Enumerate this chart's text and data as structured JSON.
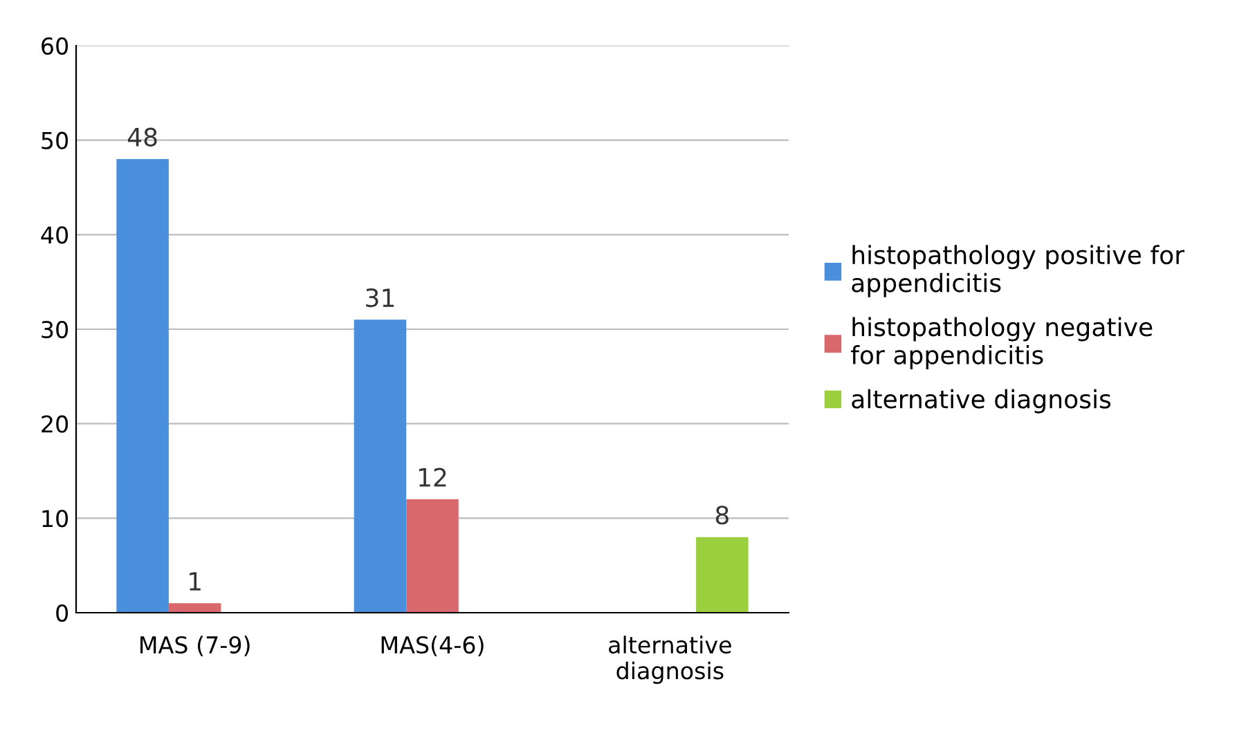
{
  "chart_data": {
    "type": "bar",
    "categories": [
      "MAS (7-9)",
      "MAS(4-6)",
      "alternative\ndiagnosis"
    ],
    "series": [
      {
        "name": "histopathology positive for\nappendicitis",
        "color": "#4a8fdb",
        "values": [
          48,
          31,
          null
        ]
      },
      {
        "name": "histopathology negative\nfor appendicitis",
        "color": "#d8686c",
        "values": [
          1,
          12,
          null
        ]
      },
      {
        "name": "alternative diagnosis",
        "color": "#9ccf3e",
        "values": [
          null,
          null,
          8
        ]
      }
    ],
    "ylim": [
      0,
      60
    ],
    "yticks": [
      0,
      10,
      20,
      30,
      40,
      50,
      60
    ],
    "grid": "y",
    "legend": "right",
    "data_labels": true
  }
}
